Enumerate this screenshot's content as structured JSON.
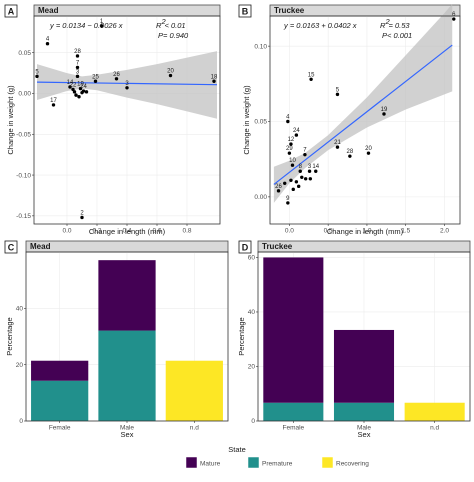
{
  "chart_data": [
    {
      "panel": "A",
      "type": "scatter",
      "title": "Mead",
      "xlabel": "Change in length (mm)",
      "ylabel": "Change in weight (g)",
      "xlim": [
        -0.22,
        1.02
      ],
      "ylim": [
        -0.16,
        0.095
      ],
      "xticks": [
        0.0,
        0.2,
        0.4,
        0.6,
        0.8
      ],
      "xtick_labels": [
        "0.0",
        "0.2",
        "0.4",
        "0.6",
        "0.8"
      ],
      "yticks": [
        -0.15,
        -0.1,
        -0.05,
        0.0,
        0.05
      ],
      "ytick_labels": [
        "-0.15",
        "-0.10",
        "-0.05",
        "0.00",
        "0.05"
      ],
      "equation": "y = 0.0134 − 0.0026 x",
      "r2_label": "R",
      "r2_value": " < 0.01",
      "p_label": "P",
      "p_value": " = 0.940",
      "fit": {
        "intercept": 0.0134,
        "slope": -0.0026
      },
      "band": {
        "x": [
          -0.2,
          0.0,
          0.1,
          0.2,
          0.4,
          0.6,
          0.8,
          1.0
        ],
        "lower": [
          -0.008,
          0.003,
          0.006,
          0.004,
          -0.005,
          -0.013,
          -0.022,
          -0.031
        ],
        "upper": [
          0.036,
          0.025,
          0.021,
          0.023,
          0.029,
          0.036,
          0.044,
          0.052
        ]
      },
      "grid": true,
      "points": [
        {
          "x": 0.23,
          "y": 0.083,
          "label": "1"
        },
        {
          "x": -0.13,
          "y": 0.061,
          "label": "4"
        },
        {
          "x": 0.07,
          "y": 0.046,
          "label": "28"
        },
        {
          "x": 0.07,
          "y": 0.032,
          "label": "7"
        },
        {
          "x": -0.2,
          "y": 0.021,
          "label": "5"
        },
        {
          "x": 0.07,
          "y": 0.021,
          "label": "3"
        },
        {
          "x": 0.19,
          "y": 0.015,
          "label": "25"
        },
        {
          "x": 0.33,
          "y": 0.018,
          "label": "26"
        },
        {
          "x": 0.4,
          "y": 0.007,
          "label": "3"
        },
        {
          "x": 0.69,
          "y": 0.022,
          "label": "20"
        },
        {
          "x": 0.98,
          "y": 0.015,
          "label": "18"
        },
        {
          "x": 0.02,
          "y": 0.008,
          "label": "14"
        },
        {
          "x": 0.04,
          "y": 0.005,
          "label": "22"
        },
        {
          "x": 0.09,
          "y": 0.006,
          "label": "19"
        },
        {
          "x": 0.11,
          "y": 0.003,
          "label": "24"
        },
        {
          "x": 0.05,
          "y": 0.002,
          "label": ""
        },
        {
          "x": 0.1,
          "y": 0.001,
          "label": ""
        },
        {
          "x": 0.13,
          "y": 0.002,
          "label": ""
        },
        {
          "x": 0.06,
          "y": -0.002,
          "label": ""
        },
        {
          "x": 0.08,
          "y": -0.004,
          "label": ""
        },
        {
          "x": -0.09,
          "y": -0.014,
          "label": "17"
        },
        {
          "x": 0.1,
          "y": -0.152,
          "label": "2"
        }
      ]
    },
    {
      "panel": "B",
      "type": "scatter",
      "title": "Truckee",
      "xlabel": "Change in length (mm)",
      "ylabel": "Change in weight (g)",
      "xlim": [
        -0.25,
        2.2
      ],
      "ylim": [
        -0.018,
        0.12
      ],
      "xticks": [
        0.0,
        0.5,
        1.0,
        1.5,
        2.0
      ],
      "xtick_labels": [
        "0.0",
        "0.5",
        "1.0",
        "1.5",
        "2.0"
      ],
      "yticks": [
        0.0,
        0.05,
        0.1
      ],
      "ytick_labels": [
        "0.00",
        "0.05",
        "0.10"
      ],
      "equation": "y = 0.0163 + 0.0402 x",
      "r2_label": "R",
      "r2_value": " = 0.53",
      "p_label": "P",
      "p_value": " < 0.001",
      "fit": {
        "intercept": 0.0163,
        "slope": 0.0402
      },
      "band": {
        "x": [
          -0.2,
          0.0,
          0.2,
          0.5,
          1.0,
          1.5,
          2.0,
          2.1
        ],
        "lower": [
          -0.004,
          0.009,
          0.019,
          0.031,
          0.046,
          0.058,
          0.068,
          0.07
        ],
        "upper": [
          0.02,
          0.024,
          0.029,
          0.041,
          0.066,
          0.094,
          0.122,
          0.128
        ]
      },
      "grid": true,
      "points": [
        {
          "x": 2.12,
          "y": 0.118,
          "label": "6"
        },
        {
          "x": 0.28,
          "y": 0.078,
          "label": "15"
        },
        {
          "x": 0.62,
          "y": 0.068,
          "label": "5"
        },
        {
          "x": 1.22,
          "y": 0.055,
          "label": "19"
        },
        {
          "x": -0.02,
          "y": 0.05,
          "label": "4"
        },
        {
          "x": 0.09,
          "y": 0.041,
          "label": "24"
        },
        {
          "x": 0.02,
          "y": 0.035,
          "label": "12"
        },
        {
          "x": 0.0,
          "y": 0.029,
          "label": "29"
        },
        {
          "x": 0.2,
          "y": 0.028,
          "label": "7"
        },
        {
          "x": 0.62,
          "y": 0.033,
          "label": "21"
        },
        {
          "x": 1.02,
          "y": 0.029,
          "label": "20"
        },
        {
          "x": 0.78,
          "y": 0.027,
          "label": "28"
        },
        {
          "x": 0.04,
          "y": 0.021,
          "label": "10"
        },
        {
          "x": 0.14,
          "y": 0.017,
          "label": "8"
        },
        {
          "x": 0.26,
          "y": 0.017,
          "label": "3"
        },
        {
          "x": 0.34,
          "y": 0.017,
          "label": "14"
        },
        {
          "x": 0.16,
          "y": 0.013,
          "label": ""
        },
        {
          "x": 0.21,
          "y": 0.012,
          "label": ""
        },
        {
          "x": 0.27,
          "y": 0.012,
          "label": ""
        },
        {
          "x": 0.09,
          "y": 0.01,
          "label": ""
        },
        {
          "x": 0.12,
          "y": 0.007,
          "label": ""
        },
        {
          "x": 0.02,
          "y": 0.011,
          "label": ""
        },
        {
          "x": -0.06,
          "y": 0.009,
          "label": ""
        },
        {
          "x": 0.05,
          "y": 0.005,
          "label": ""
        },
        {
          "x": -0.14,
          "y": 0.004,
          "label": "26"
        },
        {
          "x": -0.02,
          "y": -0.004,
          "label": "9"
        }
      ]
    },
    {
      "panel": "C",
      "type": "bar",
      "stacked": true,
      "title": "Mead",
      "xlabel": "Sex",
      "ylabel": "Percentage",
      "categories": [
        "Female",
        "Male",
        "n.d"
      ],
      "ylim": [
        0,
        60
      ],
      "yticks": [
        0,
        20,
        40
      ],
      "ytick_labels": [
        "0",
        "20",
        "40"
      ],
      "grid": true,
      "series": [
        {
          "name": "Premature",
          "values": [
            14.3,
            32.1,
            0
          ]
        },
        {
          "name": "Recovering",
          "values": [
            0,
            0,
            21.4
          ]
        },
        {
          "name": "Mature",
          "values": [
            7.1,
            25.0,
            0
          ]
        }
      ]
    },
    {
      "panel": "D",
      "type": "bar",
      "stacked": true,
      "title": "Truckee",
      "xlabel": "Sex",
      "ylabel": "Percentage",
      "categories": [
        "Female",
        "Male",
        "n.d"
      ],
      "ylim": [
        0,
        62
      ],
      "yticks": [
        0,
        20,
        40,
        60
      ],
      "ytick_labels": [
        "0",
        "20",
        "40",
        "60"
      ],
      "grid": true,
      "series": [
        {
          "name": "Premature",
          "values": [
            6.7,
            6.7,
            0
          ]
        },
        {
          "name": "Recovering",
          "values": [
            0,
            0,
            6.7
          ]
        },
        {
          "name": "Mature",
          "values": [
            53.3,
            26.7,
            0
          ]
        }
      ]
    }
  ],
  "legend": {
    "title": "State",
    "position": "bottom",
    "items": [
      {
        "name": "Mature",
        "color": "#440154"
      },
      {
        "name": "Premature",
        "color": "#21908c"
      },
      {
        "name": "Recovering",
        "color": "#fde725"
      }
    ]
  },
  "colors": {
    "Mature": "#440154",
    "Premature": "#21908c",
    "Recovering": "#fde725",
    "fit_line": "#3366ff",
    "band": "#bdbdbd",
    "point": "#000000"
  }
}
